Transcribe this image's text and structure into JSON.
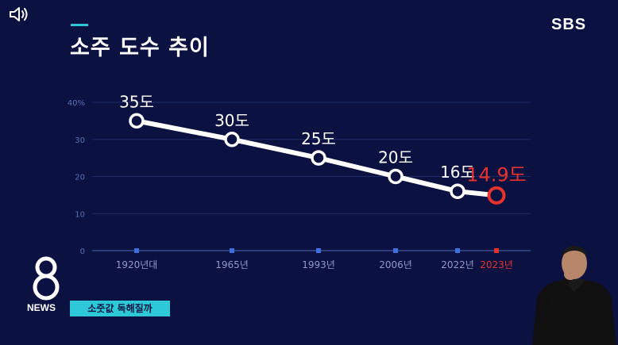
{
  "title": "소주 도수 추이",
  "broadcaster": "SBS",
  "news_label": "NEWS",
  "news_logo_digit": "8",
  "caption": "소줏값 독해질까",
  "icons": {
    "sound": "speaker-icon",
    "logo": "sbs-8-news-logo"
  },
  "colors": {
    "background": "#0b1140",
    "line": "#ffffff",
    "highlight": "#e8322e",
    "accent": "#2ec9d8",
    "axis_marker": "#3d6fe0"
  },
  "chart_data": {
    "type": "line",
    "title": "소주 도수 추이",
    "categories": [
      "1920년대",
      "1965년",
      "1993년",
      "2006년",
      "2022년",
      "2023년"
    ],
    "values": [
      35,
      30,
      25,
      20,
      16,
      14.9
    ],
    "data_labels": [
      "35도",
      "30도",
      "25도",
      "20도",
      "16도",
      "14.9도"
    ],
    "highlight_index": 5,
    "y_ticks": [
      "0",
      "10",
      "20",
      "30",
      "40%"
    ],
    "y_tick_values": [
      0,
      10,
      20,
      30,
      40
    ],
    "ylim": [
      0,
      40
    ],
    "grid": true,
    "xlabel": "",
    "ylabel": ""
  }
}
